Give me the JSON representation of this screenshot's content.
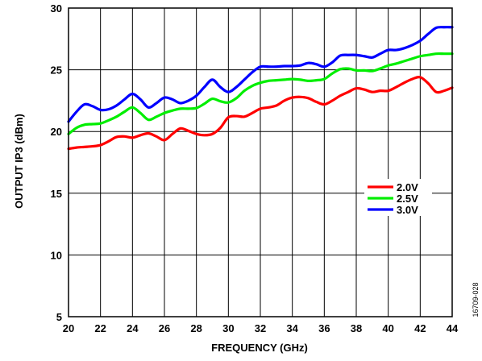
{
  "figure_id": "16709-028",
  "chart_data": {
    "type": "line",
    "title": "",
    "xlabel": "FREQUENCY (GHz)",
    "ylabel": "OUTPUT IP3 (dBm)",
    "xlim": [
      20,
      44
    ],
    "ylim": [
      5,
      30
    ],
    "x_ticks": [
      20,
      22,
      24,
      26,
      28,
      30,
      32,
      34,
      36,
      38,
      40,
      42,
      44
    ],
    "y_ticks": [
      5,
      10,
      15,
      20,
      25,
      30
    ],
    "grid": true,
    "legend_position": "right",
    "x": [
      20,
      20.5,
      21,
      21.5,
      22,
      22.5,
      23,
      23.5,
      24,
      24.5,
      25,
      25.5,
      26,
      26.5,
      27,
      27.5,
      28,
      28.5,
      29,
      29.5,
      30,
      30.5,
      31,
      31.5,
      32,
      32.5,
      33,
      33.5,
      34,
      34.5,
      35,
      35.5,
      36,
      36.5,
      37,
      37.5,
      38,
      38.5,
      39,
      39.5,
      40,
      40.5,
      41,
      41.5,
      42,
      42.5,
      43,
      43.5,
      44
    ],
    "series": [
      {
        "name": "2.0V",
        "color": "#ff0000",
        "values": [
          18.6,
          18.7,
          18.75,
          18.8,
          18.9,
          19.2,
          19.55,
          19.6,
          19.5,
          19.7,
          19.85,
          19.6,
          19.3,
          19.8,
          20.25,
          20.05,
          19.8,
          19.7,
          19.8,
          20.3,
          21.15,
          21.25,
          21.2,
          21.5,
          21.85,
          21.95,
          22.1,
          22.5,
          22.75,
          22.8,
          22.7,
          22.4,
          22.2,
          22.5,
          22.9,
          23.2,
          23.5,
          23.4,
          23.2,
          23.3,
          23.3,
          23.6,
          23.95,
          24.25,
          24.4,
          23.9,
          23.2,
          23.3,
          23.55
        ]
      },
      {
        "name": "2.5V",
        "color": "#00ee00",
        "values": [
          19.8,
          20.3,
          20.55,
          20.6,
          20.65,
          20.9,
          21.2,
          21.6,
          21.95,
          21.5,
          20.95,
          21.2,
          21.5,
          21.7,
          21.85,
          21.85,
          21.9,
          22.25,
          22.65,
          22.45,
          22.35,
          22.7,
          23.3,
          23.7,
          23.95,
          24.1,
          24.15,
          24.2,
          24.25,
          24.2,
          24.1,
          24.15,
          24.25,
          24.7,
          25.05,
          25.1,
          24.95,
          24.95,
          24.9,
          25.1,
          25.35,
          25.5,
          25.7,
          25.9,
          26.1,
          26.2,
          26.3,
          26.3,
          26.3
        ]
      },
      {
        "name": "3.0V",
        "color": "#0000ff",
        "values": [
          20.8,
          21.6,
          22.2,
          22.05,
          21.75,
          21.8,
          22.1,
          22.6,
          23.05,
          22.6,
          21.95,
          22.3,
          22.75,
          22.6,
          22.3,
          22.5,
          22.9,
          23.6,
          24.2,
          23.6,
          23.2,
          23.6,
          24.2,
          24.8,
          25.25,
          25.25,
          25.25,
          25.3,
          25.3,
          25.35,
          25.55,
          25.45,
          25.25,
          25.6,
          26.15,
          26.2,
          26.2,
          26.1,
          26.0,
          26.3,
          26.6,
          26.6,
          26.75,
          27.0,
          27.35,
          27.9,
          28.4,
          28.45,
          28.45
        ]
      }
    ]
  }
}
